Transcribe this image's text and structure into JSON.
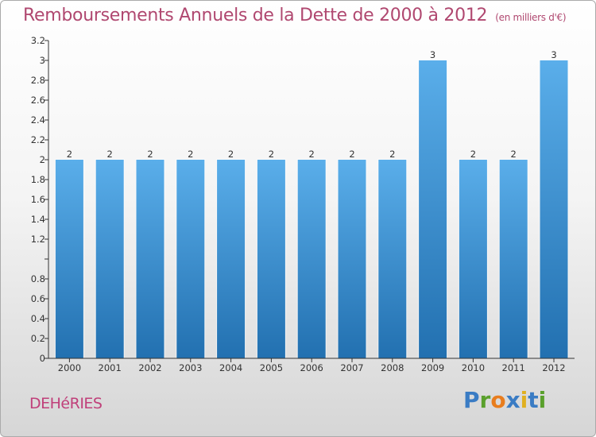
{
  "title": "Remboursements Annuels de la Dette de 2000 à 2012",
  "title_unit": "(en milliers d'€)",
  "town": "DEHéRIES",
  "logo": [
    "P",
    "r",
    "o",
    "x",
    "i",
    "t",
    "i"
  ],
  "colors": {
    "title": "#b04870",
    "bar_top": "#5aaeea",
    "bar_bottom": "#2270b0",
    "axis": "#333333"
  },
  "chart_data": {
    "type": "bar",
    "title": "Remboursements Annuels de la Dette de 2000 à 2012",
    "xlabel": "",
    "ylabel": "",
    "categories": [
      "2000",
      "2001",
      "2002",
      "2003",
      "2004",
      "2005",
      "2006",
      "2007",
      "2008",
      "2009",
      "2010",
      "2011",
      "2012"
    ],
    "values": [
      2,
      2,
      2,
      2,
      2,
      2,
      2,
      2,
      2,
      3,
      2,
      2,
      3
    ],
    "data_labels": [
      "2",
      "2",
      "2",
      "2",
      "2",
      "2",
      "2",
      "2",
      "2",
      "3",
      "2",
      "2",
      "3"
    ],
    "ylim": [
      0,
      3.2
    ],
    "yticks": [
      0,
      0.2,
      0.4,
      0.6,
      0.8,
      1,
      1.2,
      1.4,
      1.6,
      1.8,
      2,
      2.2,
      2.4,
      2.6,
      2.8,
      3,
      3.2
    ],
    "ytick_labels": [
      "0",
      "0.2",
      "0.4",
      "0.6",
      "0.8",
      "",
      "1.2",
      "1.4",
      "1.6",
      "1.8",
      "2",
      "2.2",
      "2.4",
      "2.6",
      "2.8",
      "3",
      "3.2"
    ],
    "grid": false
  }
}
